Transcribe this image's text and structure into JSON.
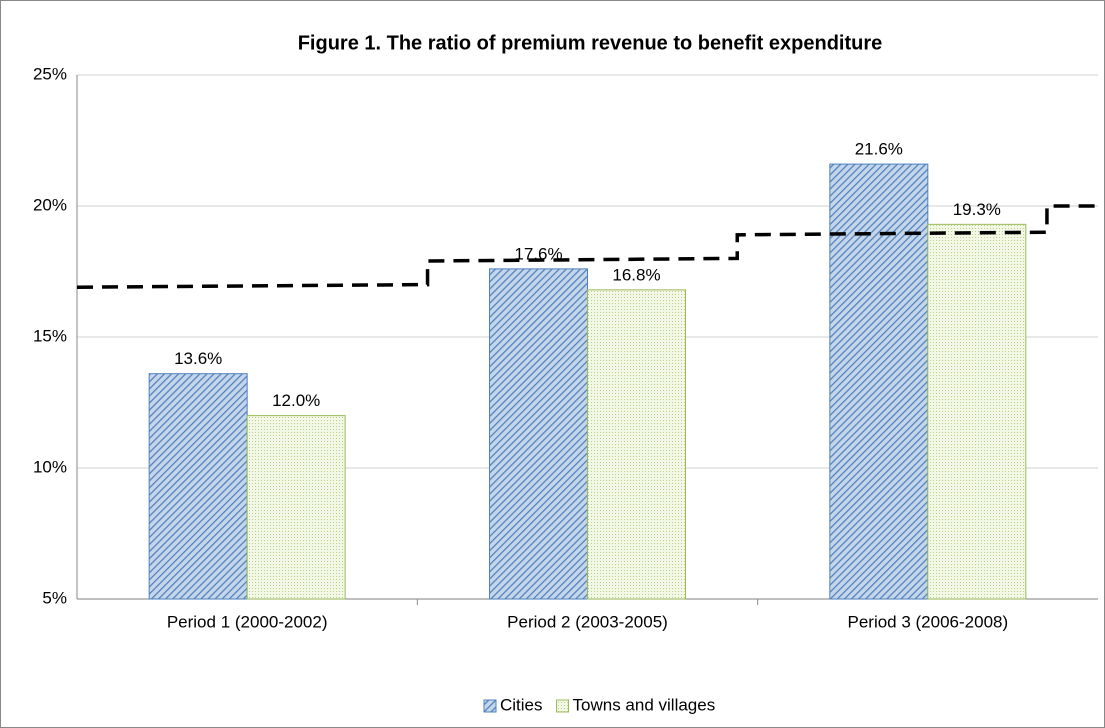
{
  "chart_data": {
    "type": "bar",
    "title": "Figure 1. The ratio of premium revenue to benefit expenditure",
    "categories": [
      "Period 1 (2000-2002)",
      "Period 2 (2003-2005)",
      "Period 3 (2006-2008)"
    ],
    "series": [
      {
        "name": "Cities",
        "color": "#4f81bd",
        "values": [
          13.6,
          17.6,
          21.6
        ],
        "value_labels": [
          "13.6%",
          "17.6%",
          "21.6%"
        ]
      },
      {
        "name": "Towns and villages",
        "color": "#9bbb59",
        "values": [
          12.0,
          16.8,
          19.3
        ],
        "value_labels": [
          "12.0%",
          "16.8%",
          "19.3%"
        ]
      }
    ],
    "line": {
      "type": "line",
      "color": "#000000",
      "dashed": true,
      "x": [
        0,
        1.03,
        1.03,
        1.94,
        1.94,
        2.85,
        2.85,
        3
      ],
      "values": [
        16.9,
        17.0,
        17.9,
        18.0,
        18.9,
        19.0,
        20.0,
        20.0
      ],
      "xlim": [
        0,
        3
      ]
    },
    "ylim": [
      5,
      25
    ],
    "yticks": [
      {
        "value": 5,
        "label": "5%"
      },
      {
        "value": 10,
        "label": "10%"
      },
      {
        "value": 15,
        "label": "15%"
      },
      {
        "value": 20,
        "label": "20%"
      },
      {
        "value": 25,
        "label": "25%"
      }
    ],
    "grid": true,
    "legend": "bottom"
  }
}
